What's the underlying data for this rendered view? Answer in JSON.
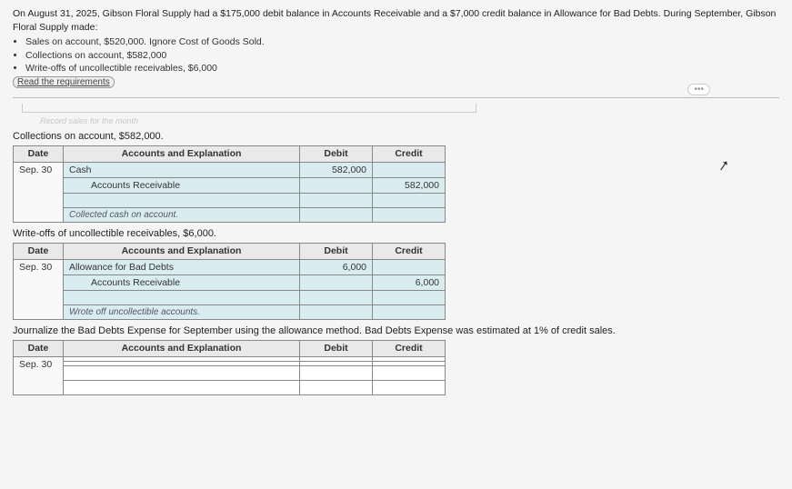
{
  "intro": "On August 31, 2025, Gibson Floral Supply had a $175,000 debit balance in Accounts Receivable and a $7,000 credit balance in Allowance for Bad Debts. During September, Gibson Floral Supply made:",
  "bullets": [
    "Sales on account, $520,000. Ignore Cost of Goods Sold.",
    "Collections on account, $582,000",
    "Write-offs of uncollectible receivables, $6,000"
  ],
  "reqLink": "Read the requirements",
  "faintText": "Record sales for the month",
  "dots": "•••",
  "headers": {
    "date": "Date",
    "acct": "Accounts and Explanation",
    "debit": "Debit",
    "credit": "Credit"
  },
  "section1": {
    "title": "Collections on account, $582,000.",
    "date": "Sep. 30",
    "line1": "Cash",
    "line2": "Accounts Receivable",
    "debit": "582,000",
    "credit": "582,000",
    "memo": "Collected cash on account."
  },
  "section2": {
    "title": "Write-offs of uncollectible receivables, $6,000.",
    "date": "Sep. 30",
    "line1": "Allowance for Bad Debts",
    "line2": "Accounts Receivable",
    "debit": "6,000",
    "credit": "6,000",
    "memo": "Wrote off uncollectible accounts."
  },
  "section3": {
    "title": "Journalize the Bad Debts Expense for September using the allowance method. Bad Debts Expense was estimated at 1% of credit sales.",
    "date": "Sep. 30"
  }
}
